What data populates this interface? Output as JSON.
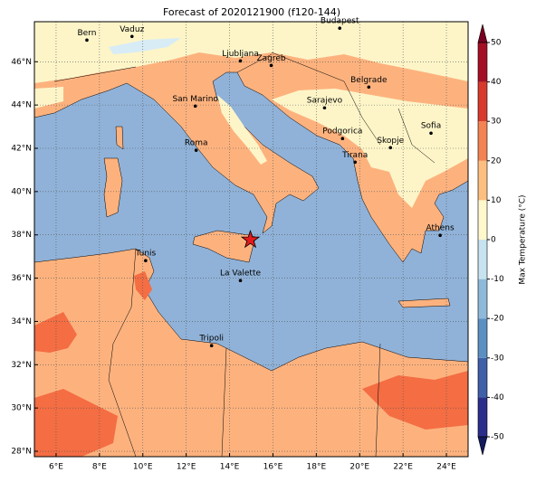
{
  "map": {
    "title": "Forecast of 2020121900 (f120-144)",
    "xlim": [
      5,
      25
    ],
    "ylim": [
      27.75,
      47.85
    ],
    "xticks": [
      {
        "value": 6,
        "label": "6°E"
      },
      {
        "value": 8,
        "label": "8°E"
      },
      {
        "value": 10,
        "label": "10°E"
      },
      {
        "value": 12,
        "label": "12°E"
      },
      {
        "value": 14,
        "label": "14°E"
      },
      {
        "value": 16,
        "label": "16°E"
      },
      {
        "value": 18,
        "label": "18°E"
      },
      {
        "value": 20,
        "label": "20°E"
      },
      {
        "value": 22,
        "label": "22°E"
      },
      {
        "value": 24,
        "label": "24°E"
      }
    ],
    "yticks": [
      {
        "value": 28,
        "label": "28°N"
      },
      {
        "value": 30,
        "label": "30°N"
      },
      {
        "value": 32,
        "label": "32°N"
      },
      {
        "value": 34,
        "label": "34°N"
      },
      {
        "value": 36,
        "label": "36°N"
      },
      {
        "value": 38,
        "label": "38°N"
      },
      {
        "value": 40,
        "label": "40°N"
      },
      {
        "value": 42,
        "label": "42°N"
      },
      {
        "value": 44,
        "label": "44°N"
      },
      {
        "value": 46,
        "label": "46°N"
      }
    ],
    "grid": true,
    "cities": [
      {
        "name": "Bern",
        "lon": 7.42,
        "lat": 47.0
      },
      {
        "name": "Vaduz",
        "lon": 9.5,
        "lat": 47.17
      },
      {
        "name": "Budapest",
        "lon": 19.08,
        "lat": 47.55
      },
      {
        "name": "Ljubljana",
        "lon": 14.5,
        "lat": 46.04
      },
      {
        "name": "Zagreb",
        "lon": 15.92,
        "lat": 45.83
      },
      {
        "name": "Belgrade",
        "lon": 20.42,
        "lat": 44.83
      },
      {
        "name": "San Marino",
        "lon": 12.42,
        "lat": 43.95
      },
      {
        "name": "Sarajevo",
        "lon": 18.38,
        "lat": 43.87
      },
      {
        "name": "Sofia",
        "lon": 23.29,
        "lat": 42.7
      },
      {
        "name": "Podgorica",
        "lon": 19.21,
        "lat": 42.45
      },
      {
        "name": "Skopje",
        "lon": 21.42,
        "lat": 42.03
      },
      {
        "name": "Roma",
        "lon": 12.46,
        "lat": 41.91
      },
      {
        "name": "Tirana",
        "lon": 19.79,
        "lat": 41.36
      },
      {
        "name": "Athens",
        "lon": 23.71,
        "lat": 37.98
      },
      {
        "name": "Tunis",
        "lon": 10.13,
        "lat": 36.81
      },
      {
        "name": "La Valette",
        "lon": 14.5,
        "lat": 35.89
      },
      {
        "name": "Tripoli",
        "lon": 13.17,
        "lat": 32.88
      }
    ],
    "marker": {
      "lon": 14.96,
      "lat": 37.77,
      "color": "#e31a1c"
    }
  },
  "colorbar": {
    "label": "Max Temperature (°C)",
    "ticks": [
      -50,
      -40,
      -30,
      -20,
      -10,
      0,
      10,
      20,
      30,
      40,
      50
    ],
    "colors": [
      "#2b2e8a",
      "#3f5fa8",
      "#5b8fc2",
      "#8fb9d9",
      "#c6e3ef",
      "#fef8cc",
      "#fdbf80",
      "#f38352",
      "#d73a2c",
      "#a50f26"
    ],
    "extend_colors": [
      "#141a5e",
      "#7a0020"
    ]
  }
}
